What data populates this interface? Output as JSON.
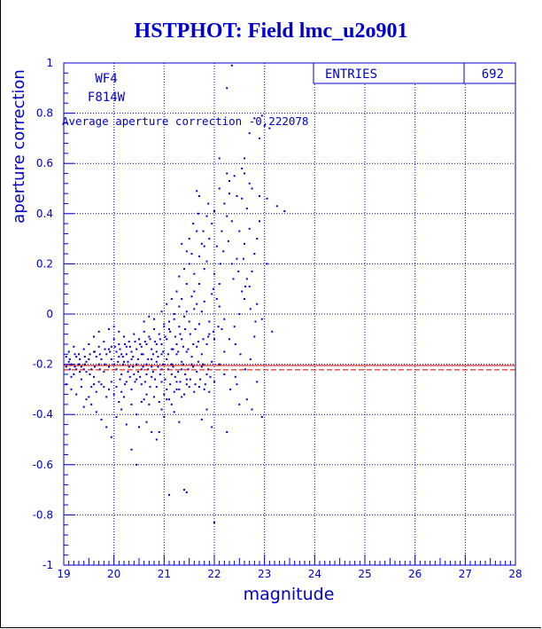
{
  "title": "HSTPHOT: Field lmc_u2o901",
  "chart_data": {
    "type": "scatter",
    "xlabel": "magnitude",
    "ylabel": "aperture correction",
    "xlim": [
      19,
      28
    ],
    "ylim": [
      -1,
      1
    ],
    "x_ticks": [
      "19",
      "20",
      "21",
      "22",
      "23",
      "24",
      "25",
      "26",
      "27",
      "28"
    ],
    "y_ticks": [
      "-1",
      "-0.8",
      "-0.6",
      "-0.4",
      "-0.2",
      "0",
      "0.2",
      "0.4",
      "0.6",
      "0.8",
      "1"
    ],
    "grid": true,
    "labels": {
      "chip": "WF4",
      "filter": "F814W"
    },
    "stats": {
      "entries_label": "ENTRIES",
      "entries_value": "692"
    },
    "average_text": "Average aperture correction -0.222078",
    "average_value": -0.222078,
    "reference_value": -0.205,
    "colors": {
      "primary": "#0000cc",
      "reference_line": "#cc0000",
      "grid": "#0000cc"
    },
    "points": [
      [
        22.35,
        0.99
      ],
      [
        22.25,
        0.9
      ],
      [
        22.8,
        0.78
      ],
      [
        22.95,
        0.79
      ],
      [
        22.7,
        0.72
      ],
      [
        22.9,
        0.7
      ],
      [
        23.0,
        0.75
      ],
      [
        23.1,
        0.74
      ],
      [
        23.05,
        0.2
      ],
      [
        22.1,
        0.62
      ],
      [
        22.6,
        0.62
      ],
      [
        22.55,
        0.58
      ],
      [
        22.6,
        0.56
      ],
      [
        22.4,
        0.55
      ],
      [
        22.25,
        0.56
      ],
      [
        22.3,
        0.53
      ],
      [
        22.1,
        0.5
      ],
      [
        22.3,
        0.48
      ],
      [
        22.45,
        0.47
      ],
      [
        22.55,
        0.46
      ],
      [
        22.75,
        0.5
      ],
      [
        22.9,
        0.47
      ],
      [
        23.05,
        0.46
      ],
      [
        23.25,
        0.43
      ],
      [
        23.4,
        0.41
      ],
      [
        21.65,
        0.49
      ],
      [
        21.7,
        0.47
      ],
      [
        22.2,
        0.44
      ],
      [
        22.0,
        0.41
      ],
      [
        22.35,
        0.37
      ],
      [
        22.5,
        0.33
      ],
      [
        22.7,
        0.34
      ],
      [
        22.6,
        0.28
      ],
      [
        22.45,
        0.22
      ],
      [
        22.35,
        0.2
      ],
      [
        22.65,
        0.14
      ],
      [
        22.55,
        0.09
      ],
      [
        22.85,
        0.04
      ],
      [
        22.95,
        -0.02
      ],
      [
        23.15,
        -0.07
      ],
      [
        22.8,
        -0.09
      ],
      [
        21.85,
        0.39
      ],
      [
        21.95,
        0.36
      ],
      [
        21.9,
        0.3
      ],
      [
        21.8,
        0.27
      ],
      [
        21.85,
        0.21
      ],
      [
        22.0,
        0.16
      ],
      [
        22.1,
        0.12
      ],
      [
        21.95,
        0.08
      ],
      [
        22.1,
        0.03
      ],
      [
        22.2,
        -0.02
      ],
      [
        22.15,
        -0.06
      ],
      [
        21.9,
        -0.03
      ],
      [
        21.7,
        0.12
      ],
      [
        21.6,
        0.09
      ],
      [
        21.65,
        0.04
      ],
      [
        21.75,
        0.01
      ],
      [
        21.55,
        0.07
      ],
      [
        21.45,
        0.12
      ],
      [
        21.35,
        0.06
      ],
      [
        21.3,
        0.03
      ],
      [
        21.2,
        0.0
      ],
      [
        21.1,
        -0.03
      ],
      [
        21.0,
        -0.05
      ],
      [
        20.95,
        -0.12
      ],
      [
        20.85,
        -0.15
      ],
      [
        20.75,
        -0.18
      ],
      [
        20.65,
        -0.2
      ],
      [
        20.55,
        -0.22
      ],
      [
        20.4,
        -0.24
      ],
      [
        20.3,
        -0.21
      ],
      [
        20.2,
        -0.19
      ],
      [
        20.1,
        -0.17
      ],
      [
        20.0,
        -0.2
      ],
      [
        19.9,
        -0.21
      ],
      [
        19.8,
        -0.23
      ],
      [
        19.7,
        -0.2
      ],
      [
        19.6,
        -0.25
      ],
      [
        19.5,
        -0.18
      ],
      [
        19.4,
        -0.22
      ],
      [
        19.3,
        -0.2
      ],
      [
        19.2,
        -0.24
      ],
      [
        19.1,
        -0.19
      ],
      [
        19.05,
        -0.21
      ],
      [
        19.15,
        -0.25
      ],
      [
        19.25,
        -0.17
      ],
      [
        19.35,
        -0.26
      ],
      [
        19.45,
        -0.23
      ],
      [
        19.55,
        -0.29
      ],
      [
        19.65,
        -0.31
      ],
      [
        19.75,
        -0.28
      ],
      [
        19.85,
        -0.33
      ],
      [
        19.95,
        -0.27
      ],
      [
        20.05,
        -0.29
      ],
      [
        20.15,
        -0.31
      ],
      [
        20.25,
        -0.27
      ],
      [
        20.35,
        -0.3
      ],
      [
        20.45,
        -0.26
      ],
      [
        20.55,
        -0.28
      ],
      [
        20.65,
        -0.32
      ],
      [
        20.75,
        -0.25
      ],
      [
        20.85,
        -0.29
      ],
      [
        20.95,
        -0.27
      ],
      [
        21.05,
        -0.3
      ],
      [
        21.15,
        -0.24
      ],
      [
        21.25,
        -0.27
      ],
      [
        21.35,
        -0.22
      ],
      [
        21.45,
        -0.26
      ],
      [
        21.55,
        -0.2
      ],
      [
        21.65,
        -0.23
      ],
      [
        21.75,
        -0.21
      ],
      [
        21.85,
        -0.24
      ],
      [
        21.95,
        -0.19
      ],
      [
        19.1,
        -0.15
      ],
      [
        19.2,
        -0.13
      ],
      [
        19.3,
        -0.16
      ],
      [
        19.4,
        -0.14
      ],
      [
        19.5,
        -0.12
      ],
      [
        19.6,
        -0.15
      ],
      [
        19.7,
        -0.13
      ],
      [
        19.8,
        -0.11
      ],
      [
        19.9,
        -0.14
      ],
      [
        20.0,
        -0.1
      ],
      [
        20.1,
        -0.12
      ],
      [
        20.2,
        -0.09
      ],
      [
        20.3,
        -0.11
      ],
      [
        20.4,
        -0.08
      ],
      [
        20.5,
        -0.1
      ],
      [
        20.6,
        -0.07
      ],
      [
        20.7,
        -0.09
      ],
      [
        20.8,
        -0.06
      ],
      [
        20.9,
        -0.08
      ],
      [
        21.0,
        -0.04
      ],
      [
        21.1,
        -0.06
      ],
      [
        21.2,
        -0.02
      ],
      [
        21.3,
        -0.05
      ],
      [
        21.4,
        -0.01
      ],
      [
        21.5,
        -0.03
      ],
      [
        21.6,
        0.02
      ],
      [
        21.7,
        -0.04
      ],
      [
        21.8,
        0.05
      ],
      [
        21.9,
        -0.08
      ],
      [
        22.0,
        -0.1
      ],
      [
        19.95,
        -0.18
      ],
      [
        20.05,
        -0.22
      ],
      [
        20.15,
        -0.24
      ],
      [
        20.25,
        -0.16
      ],
      [
        20.35,
        -0.18
      ],
      [
        20.45,
        -0.2
      ],
      [
        20.55,
        -0.16
      ],
      [
        20.65,
        -0.24
      ],
      [
        20.75,
        -0.21
      ],
      [
        20.85,
        -0.19
      ],
      [
        20.95,
        -0.22
      ],
      [
        21.05,
        -0.18
      ],
      [
        21.15,
        -0.2
      ],
      [
        21.25,
        -0.16
      ],
      [
        21.35,
        -0.19
      ],
      [
        21.45,
        -0.15
      ],
      [
        21.55,
        -0.17
      ],
      [
        21.65,
        -0.13
      ],
      [
        21.75,
        -0.16
      ],
      [
        21.85,
        -0.12
      ],
      [
        19.05,
        -0.28
      ],
      [
        19.15,
        -0.3
      ],
      [
        19.25,
        -0.32
      ],
      [
        19.35,
        -0.29
      ],
      [
        19.45,
        -0.34
      ],
      [
        19.55,
        -0.36
      ],
      [
        19.65,
        -0.39
      ],
      [
        19.75,
        -0.42
      ],
      [
        19.85,
        -0.45
      ],
      [
        19.95,
        -0.49
      ],
      [
        20.05,
        -0.41
      ],
      [
        20.15,
        -0.38
      ],
      [
        20.25,
        -0.44
      ],
      [
        20.35,
        -0.36
      ],
      [
        20.45,
        -0.4
      ],
      [
        20.55,
        -0.35
      ],
      [
        20.65,
        -0.43
      ],
      [
        20.75,
        -0.47
      ],
      [
        20.85,
        -0.5
      ],
      [
        20.95,
        -0.38
      ],
      [
        21.05,
        -0.34
      ],
      [
        21.15,
        -0.36
      ],
      [
        21.25,
        -0.3
      ],
      [
        21.35,
        -0.33
      ],
      [
        21.45,
        -0.28
      ],
      [
        20.35,
        -0.54
      ],
      [
        20.45,
        -0.6
      ],
      [
        21.1,
        -0.72
      ],
      [
        21.4,
        -0.7
      ],
      [
        21.45,
        -0.71
      ],
      [
        22.25,
        -0.47
      ],
      [
        22.5,
        -0.36
      ],
      [
        22.65,
        -0.34
      ],
      [
        22.75,
        -0.38
      ],
      [
        22.95,
        -0.41
      ],
      [
        22.85,
        -0.27
      ],
      [
        22.45,
        -0.28
      ],
      [
        22.2,
        -0.24
      ],
      [
        22.0,
        -0.83
      ],
      [
        21.95,
        -0.45
      ],
      [
        21.85,
        -0.38
      ],
      [
        21.75,
        -0.42
      ],
      [
        20.0,
        -0.05
      ],
      [
        20.1,
        -0.07
      ],
      [
        20.6,
        -0.03
      ],
      [
        20.7,
        -0.01
      ],
      [
        20.8,
        -0.02
      ],
      [
        21.3,
        0.15
      ],
      [
        21.4,
        0.18
      ],
      [
        21.5,
        0.2
      ],
      [
        21.6,
        0.16
      ],
      [
        21.7,
        0.23
      ],
      [
        21.8,
        0.18
      ],
      [
        21.25,
        0.09
      ],
      [
        21.15,
        0.06
      ],
      [
        21.05,
        0.04
      ],
      [
        20.95,
        0.01
      ],
      [
        19.6,
        -0.09
      ],
      [
        19.7,
        -0.07
      ],
      [
        19.9,
        -0.06
      ],
      [
        19.5,
        -0.33
      ],
      [
        19.4,
        -0.37
      ],
      [
        20.5,
        -0.45
      ],
      [
        20.9,
        -0.47
      ],
      [
        21.0,
        -0.41
      ],
      [
        21.2,
        -0.39
      ],
      [
        21.3,
        -0.43
      ],
      [
        21.9,
        -0.31
      ],
      [
        22.0,
        -0.27
      ],
      [
        22.1,
        -0.2
      ],
      [
        22.2,
        -0.15
      ],
      [
        22.3,
        -0.1
      ],
      [
        22.4,
        -0.05
      ],
      [
        22.5,
        0.0
      ],
      [
        22.6,
        0.06
      ],
      [
        22.7,
        0.11
      ],
      [
        22.75,
        0.17
      ],
      [
        22.8,
        0.24
      ],
      [
        22.85,
        0.3
      ],
      [
        22.9,
        0.37
      ],
      [
        22.65,
        0.42
      ],
      [
        22.7,
        0.52
      ],
      [
        22.05,
        0.27
      ],
      [
        22.15,
        0.33
      ],
      [
        22.25,
        0.39
      ],
      [
        21.5,
        0.3
      ],
      [
        21.55,
        0.24
      ],
      [
        21.65,
        0.33
      ],
      [
        21.75,
        0.28
      ],
      [
        21.45,
        0.01
      ],
      [
        21.35,
        -0.1
      ],
      [
        21.25,
        -0.12
      ],
      [
        21.15,
        -0.14
      ],
      [
        21.05,
        -0.1
      ],
      [
        20.95,
        -0.16
      ],
      [
        20.85,
        -0.12
      ],
      [
        20.75,
        -0.14
      ],
      [
        20.65,
        -0.12
      ],
      [
        20.55,
        -0.13
      ],
      [
        20.45,
        -0.14
      ],
      [
        20.35,
        -0.15
      ],
      [
        20.25,
        -0.13
      ],
      [
        20.15,
        -0.16
      ],
      [
        20.05,
        -0.15
      ],
      [
        19.95,
        -0.13
      ],
      [
        19.85,
        -0.16
      ],
      [
        19.75,
        -0.18
      ],
      [
        19.65,
        -0.17
      ],
      [
        19.55,
        -0.22
      ],
      [
        19.45,
        -0.19
      ],
      [
        19.35,
        -0.21
      ],
      [
        19.25,
        -0.22
      ],
      [
        19.15,
        -0.2
      ],
      [
        19.05,
        -0.17
      ],
      [
        20.12,
        -0.26
      ],
      [
        20.22,
        -0.28
      ],
      [
        20.32,
        -0.25
      ],
      [
        20.42,
        -0.27
      ],
      [
        20.52,
        -0.25
      ],
      [
        20.62,
        -0.27
      ],
      [
        20.72,
        -0.29
      ],
      [
        20.82,
        -0.26
      ],
      [
        20.92,
        -0.24
      ],
      [
        21.02,
        -0.26
      ],
      [
        21.12,
        -0.28
      ],
      [
        21.22,
        -0.25
      ],
      [
        21.32,
        -0.27
      ],
      [
        21.42,
        -0.24
      ],
      [
        21.52,
        -0.26
      ],
      [
        21.62,
        -0.28
      ],
      [
        21.72,
        -0.26
      ],
      [
        21.82,
        -0.28
      ],
      [
        21.92,
        -0.25
      ],
      [
        20.18,
        -0.2
      ],
      [
        20.28,
        -0.23
      ],
      [
        20.38,
        -0.21
      ],
      [
        20.48,
        -0.23
      ],
      [
        20.58,
        -0.21
      ],
      [
        20.68,
        -0.22
      ],
      [
        20.78,
        -0.23
      ],
      [
        20.88,
        -0.21
      ],
      [
        20.98,
        -0.2
      ],
      [
        21.08,
        -0.22
      ],
      [
        21.18,
        -0.21
      ],
      [
        21.28,
        -0.23
      ],
      [
        21.38,
        -0.2
      ],
      [
        21.48,
        -0.22
      ],
      [
        21.58,
        -0.21
      ],
      [
        21.68,
        -0.19
      ],
      [
        21.78,
        -0.2
      ],
      [
        21.88,
        -0.22
      ],
      [
        19.82,
        -0.2
      ],
      [
        19.72,
        -0.22
      ],
      [
        19.62,
        -0.21
      ],
      [
        19.52,
        -0.24
      ],
      [
        19.42,
        -0.2
      ],
      [
        19.32,
        -0.23
      ],
      [
        19.22,
        -0.21
      ],
      [
        19.12,
        -0.22
      ],
      [
        20.08,
        -0.19
      ],
      [
        20.18,
        -0.17
      ],
      [
        20.28,
        -0.19
      ],
      [
        20.38,
        -0.17
      ],
      [
        20.48,
        -0.18
      ],
      [
        20.58,
        -0.16
      ],
      [
        20.68,
        -0.18
      ],
      [
        20.78,
        -0.16
      ],
      [
        20.88,
        -0.17
      ],
      [
        20.98,
        -0.15
      ],
      [
        21.08,
        -0.16
      ],
      [
        21.18,
        -0.14
      ],
      [
        21.28,
        -0.15
      ],
      [
        21.38,
        -0.13
      ],
      [
        21.48,
        -0.14
      ],
      [
        21.58,
        -0.12
      ],
      [
        21.68,
        -0.11
      ],
      [
        21.78,
        -0.1
      ],
      [
        21.88,
        -0.09
      ],
      [
        21.98,
        -0.07
      ],
      [
        22.08,
        -0.05
      ],
      [
        21.62,
        -0.06
      ],
      [
        21.52,
        -0.08
      ],
      [
        21.42,
        -0.06
      ],
      [
        21.32,
        -0.08
      ],
      [
        21.22,
        -0.09
      ],
      [
        21.12,
        -0.07
      ],
      [
        21.02,
        -0.09
      ],
      [
        20.92,
        -0.1
      ],
      [
        20.82,
        -0.11
      ],
      [
        20.72,
        -0.1
      ],
      [
        20.62,
        -0.11
      ],
      [
        20.52,
        -0.12
      ],
      [
        20.42,
        -0.11
      ],
      [
        20.32,
        -0.13
      ],
      [
        20.22,
        -0.12
      ],
      [
        20.12,
        -0.14
      ],
      [
        20.02,
        -0.13
      ],
      [
        19.92,
        -0.15
      ],
      [
        19.82,
        -0.14
      ],
      [
        19.72,
        -0.16
      ],
      [
        19.62,
        -0.15
      ],
      [
        19.52,
        -0.16
      ],
      [
        19.42,
        -0.17
      ],
      [
        19.32,
        -0.18
      ],
      [
        19.22,
        -0.16
      ],
      [
        19.12,
        -0.18
      ],
      [
        20.6,
        -0.34
      ],
      [
        20.7,
        -0.36
      ],
      [
        20.8,
        -0.33
      ],
      [
        20.9,
        -0.35
      ],
      [
        21.0,
        -0.32
      ],
      [
        21.1,
        -0.34
      ],
      [
        21.2,
        -0.31
      ],
      [
        21.3,
        -0.3
      ],
      [
        21.4,
        -0.32
      ],
      [
        21.5,
        -0.29
      ],
      [
        21.6,
        -0.31
      ],
      [
        21.7,
        -0.29
      ],
      [
        21.8,
        -0.3
      ],
      [
        20.2,
        -0.33
      ],
      [
        20.1,
        -0.35
      ],
      [
        20.0,
        -0.32
      ],
      [
        19.9,
        -0.3
      ],
      [
        19.8,
        -0.29
      ],
      [
        19.7,
        -0.27
      ],
      [
        19.6,
        -0.28
      ],
      [
        21.35,
        0.28
      ],
      [
        21.45,
        0.25
      ],
      [
        21.58,
        0.36
      ],
      [
        21.68,
        0.4
      ],
      [
        21.78,
        0.33
      ],
      [
        21.88,
        0.44
      ],
      [
        21.98,
        0.1
      ],
      [
        22.05,
        0.06
      ],
      [
        22.12,
        0.2
      ],
      [
        22.18,
        0.25
      ],
      [
        22.28,
        0.29
      ],
      [
        22.38,
        0.14
      ],
      [
        22.48,
        0.17
      ],
      [
        22.58,
        0.22
      ],
      [
        22.62,
        0.11
      ],
      [
        22.72,
        0.02
      ],
      [
        22.82,
        -0.03
      ],
      [
        22.42,
        -0.12
      ],
      [
        22.52,
        -0.16
      ],
      [
        22.62,
        -0.22
      ],
      [
        22.72,
        -0.18
      ],
      [
        22.32,
        -0.3
      ],
      [
        22.42,
        -0.25
      ]
    ]
  }
}
